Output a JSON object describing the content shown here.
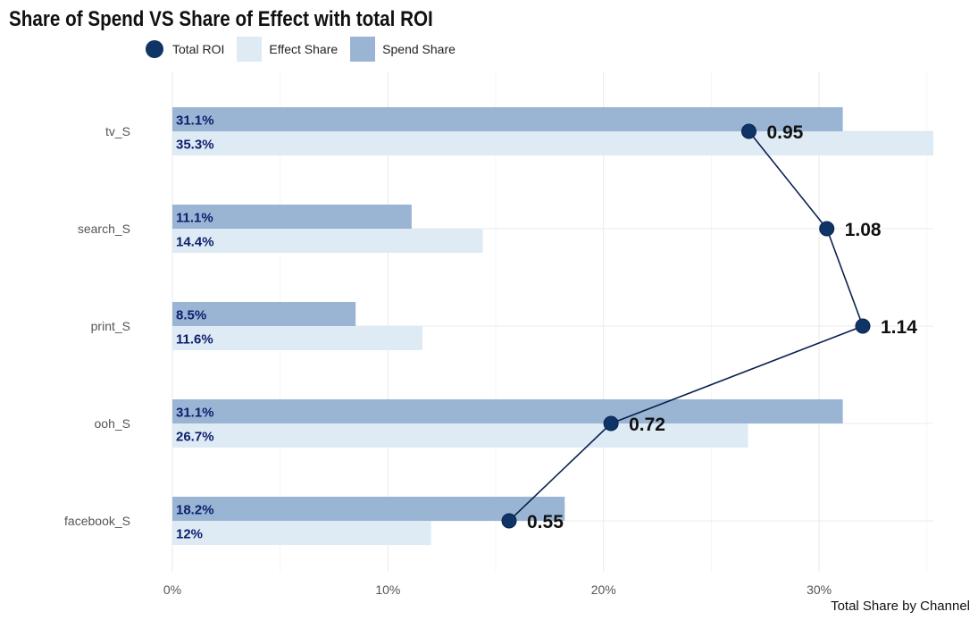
{
  "chart_data": {
    "type": "bar",
    "title": "Share of Spend VS Share of Effect with total ROI",
    "xlabel": "Total Share by Channel",
    "ylabel": "",
    "xlim": [
      0,
      35.3
    ],
    "x_ticks": [
      0,
      10,
      20,
      30
    ],
    "x_tick_labels": [
      "0%",
      "10%",
      "20%",
      "30%"
    ],
    "categories": [
      "tv_S",
      "search_S",
      "print_S",
      "ooh_S",
      "facebook_S"
    ],
    "series": [
      {
        "name": "Spend Share",
        "values": [
          31.1,
          11.1,
          8.5,
          31.1,
          18.2
        ],
        "labels": [
          "31.1%",
          "11.1%",
          "8.5%",
          "31.1%",
          "18.2%"
        ],
        "color": "#9ab5d4"
      },
      {
        "name": "Effect Share",
        "values": [
          35.3,
          14.4,
          11.6,
          26.7,
          12.0
        ],
        "labels": [
          "35.3%",
          "14.4%",
          "11.6%",
          "26.7%",
          "12%"
        ],
        "color": "#deeaf4"
      }
    ],
    "roi": {
      "name": "Total ROI",
      "values": [
        0.95,
        1.08,
        1.14,
        0.72,
        0.55
      ],
      "labels": [
        "0.95",
        "1.08",
        "1.14",
        "0.72",
        "0.55"
      ],
      "color": "#0f3566",
      "line_color": "#0a2150"
    },
    "legend": {
      "position": "top-left",
      "items": [
        "Total ROI",
        "Effect Share",
        "Spend Share"
      ]
    },
    "grid": true
  }
}
